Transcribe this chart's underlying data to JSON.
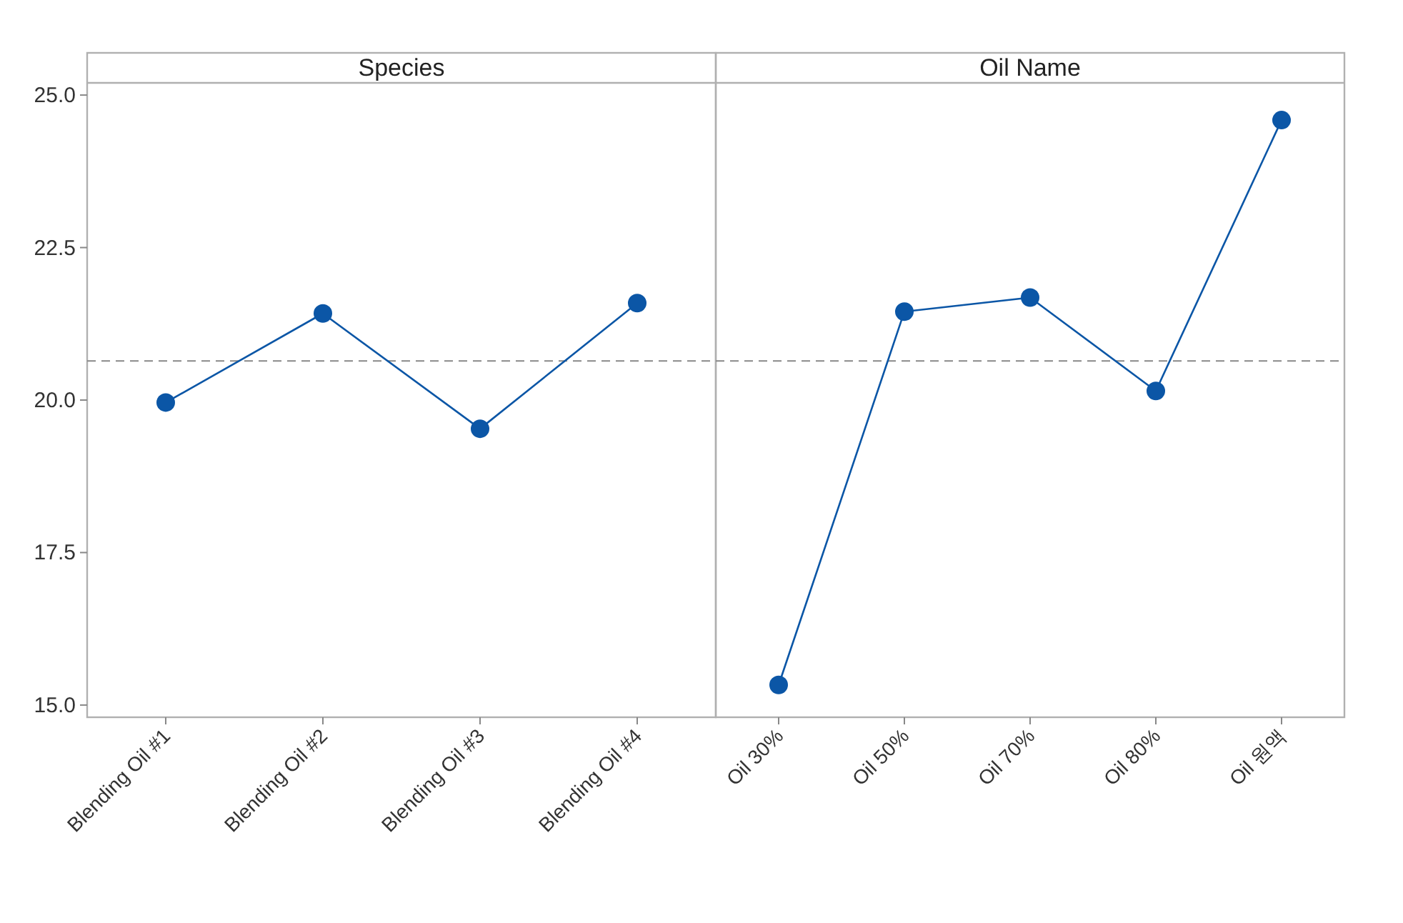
{
  "chart_data": [
    {
      "type": "line",
      "title": "Species",
      "categories": [
        "Blending Oil #1",
        "Blending Oil #2",
        "Blending Oil #3",
        "Blending Oil #4"
      ],
      "series": [
        {
          "color": "#0b56a6",
          "values": [
            19.96,
            21.42,
            19.53,
            21.59
          ]
        }
      ],
      "ylim": [
        14.8,
        25.2
      ],
      "yticks": [
        {
          "value": 15,
          "label": "15.0"
        },
        {
          "value": 17.5,
          "label": "17.5"
        },
        {
          "value": 20,
          "label": "20.0"
        },
        {
          "value": 22.5,
          "label": "22.5"
        },
        {
          "value": 25,
          "label": "25.0"
        }
      ],
      "ref_lines": [
        {
          "axis": "y",
          "value": 20.64,
          "color": "#888888",
          "line_style": "dashed"
        }
      ],
      "marker": "circle",
      "line_style": "solid",
      "grid": false
    },
    {
      "type": "line",
      "title": "Oil Name",
      "categories": [
        "Oil 30%",
        "Oil 50%",
        "Oil 70%",
        "Oil 80%",
        "Oil 원액"
      ],
      "series": [
        {
          "color": "#0b56a6",
          "values": [
            15.33,
            21.45,
            21.68,
            20.15,
            24.59
          ]
        }
      ],
      "ylim": [
        14.8,
        25.2
      ],
      "tick_labels": "x",
      "ref_lines": [
        {
          "axis": "y",
          "value": 20.64,
          "color": "#888888",
          "line_style": "dashed"
        }
      ],
      "marker": "circle",
      "line_style": "solid",
      "grid": false
    }
  ]
}
